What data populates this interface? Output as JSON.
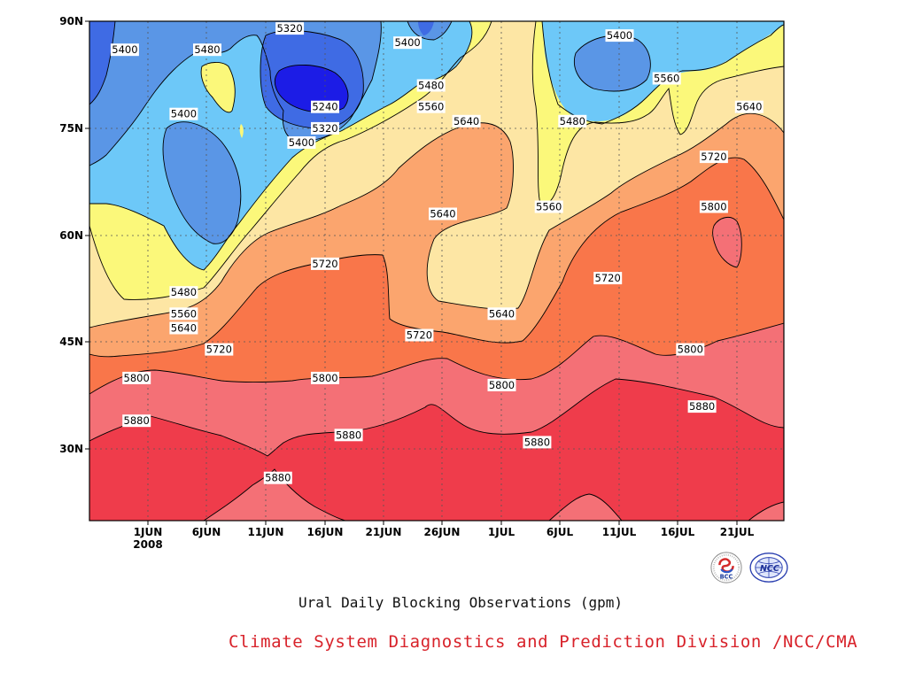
{
  "chart_data": {
    "type": "heatmap",
    "title": "Ural Daily Blocking Observations (gpm)",
    "xaxis": {
      "tick_labels": [
        "1JUN",
        "6JUN",
        "11JUN",
        "16JUN",
        "21JUN",
        "26JUN",
        "1JUL",
        "6JUL",
        "11JUL",
        "16JUL",
        "21JUL"
      ],
      "year_label": "2008"
    },
    "yaxis": {
      "tick_labels": [
        "30N",
        "45N",
        "60N",
        "75N",
        "90N"
      ],
      "range": [
        "20N",
        "90N"
      ]
    },
    "contour_levels": [
      5240,
      5320,
      5400,
      5480,
      5560,
      5640,
      5720,
      5800,
      5880
    ],
    "fill_colors": [
      "#1c1ce6",
      "#3f6be4",
      "#5a96e6",
      "#6dc8f8",
      "#fbf87a",
      "#fde6a4",
      "#fba56e",
      "#f9764a",
      "#f47076",
      "#ef3c4b"
    ],
    "contour_labels": [
      {
        "text": "5320",
        "date": "13JUN",
        "lat": "89N"
      },
      {
        "text": "5400",
        "date": "30MAY",
        "lat": "86N"
      },
      {
        "text": "5480",
        "date": "6JUN",
        "lat": "86N"
      },
      {
        "text": "5400",
        "date": "23JUN",
        "lat": "87N"
      },
      {
        "text": "5240",
        "date": "16JUN",
        "lat": "78N"
      },
      {
        "text": "5480",
        "date": "25JUN",
        "lat": "81N"
      },
      {
        "text": "5400",
        "date": "11JUL",
        "lat": "88N"
      },
      {
        "text": "5400",
        "date": "4JUN",
        "lat": "77N"
      },
      {
        "text": "5320",
        "date": "16JUN",
        "lat": "75N"
      },
      {
        "text": "5400",
        "date": "14JUN",
        "lat": "73N"
      },
      {
        "text": "5560",
        "date": "25JUN",
        "lat": "78N"
      },
      {
        "text": "5640",
        "date": "28JUN",
        "lat": "76N"
      },
      {
        "text": "5480",
        "date": "7JUL",
        "lat": "76N"
      },
      {
        "text": "5560",
        "date": "15JUL",
        "lat": "82N"
      },
      {
        "text": "5640",
        "date": "22JUL",
        "lat": "78N"
      },
      {
        "text": "5720",
        "date": "19JUL",
        "lat": "71N"
      },
      {
        "text": "5640",
        "date": "26JUN",
        "lat": "63N"
      },
      {
        "text": "5560",
        "date": "5JUL",
        "lat": "64N"
      },
      {
        "text": "5800",
        "date": "19JUL",
        "lat": "64N"
      },
      {
        "text": "5720",
        "date": "16JUN",
        "lat": "56N"
      },
      {
        "text": "5720",
        "date": "10JUL",
        "lat": "54N"
      },
      {
        "text": "5480",
        "date": "4JUN",
        "lat": "52N"
      },
      {
        "text": "5560",
        "date": "4JUN",
        "lat": "49N"
      },
      {
        "text": "5640",
        "date": "4JUN",
        "lat": "47N"
      },
      {
        "text": "5640",
        "date": "1JUL",
        "lat": "49N"
      },
      {
        "text": "5720",
        "date": "24JUN",
        "lat": "46N"
      },
      {
        "text": "5720",
        "date": "7JUN",
        "lat": "44N"
      },
      {
        "text": "5800",
        "date": "17JUL",
        "lat": "44N"
      },
      {
        "text": "5800",
        "date": "31MAY",
        "lat": "40N"
      },
      {
        "text": "5800",
        "date": "16JUN",
        "lat": "40N"
      },
      {
        "text": "5800",
        "date": "1JUL",
        "lat": "39N"
      },
      {
        "text": "5880",
        "date": "18JUL",
        "lat": "36N"
      },
      {
        "text": "5880",
        "date": "31MAY",
        "lat": "34N"
      },
      {
        "text": "5880",
        "date": "18JUN",
        "lat": "32N"
      },
      {
        "text": "5880",
        "date": "4JUL",
        "lat": "31N"
      },
      {
        "text": "5880",
        "date": "12JUN",
        "lat": "26N"
      }
    ]
  },
  "caption": "Ural Daily Blocking Observations (gpm)",
  "credit": "Climate System Diagnostics and Prediction Division /NCC/CMA",
  "logos": [
    {
      "name": "bcc-logo",
      "text": "BCC"
    },
    {
      "name": "ncc-logo",
      "text": "NCC"
    }
  ]
}
